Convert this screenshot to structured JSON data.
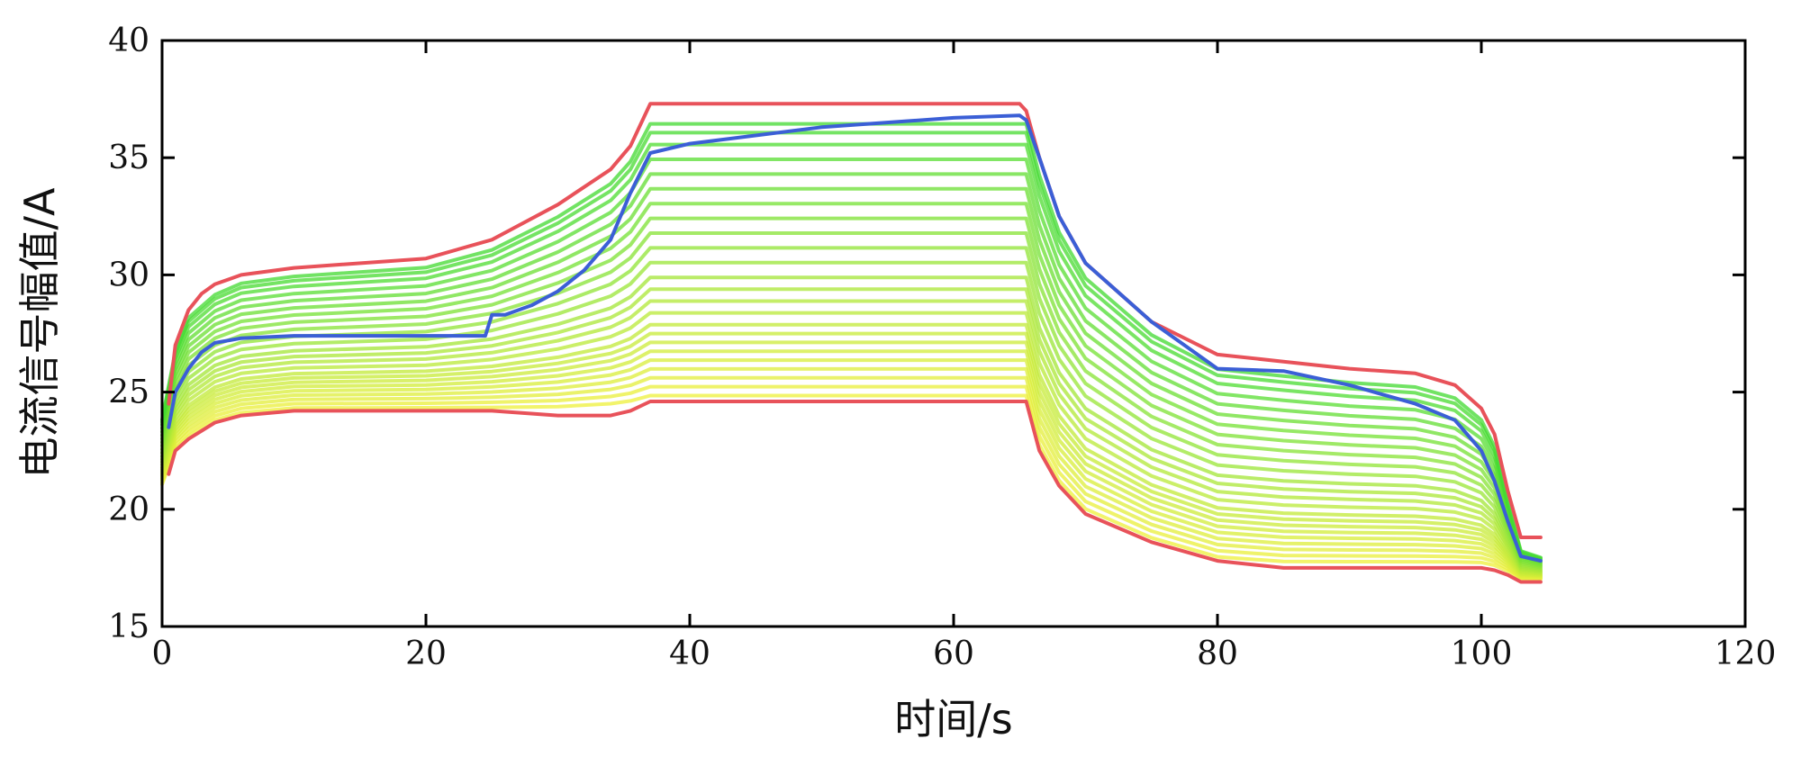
{
  "chart_data": {
    "type": "line",
    "title": "",
    "xlabel": "时间/s",
    "ylabel": "电流信号幅值/A",
    "xlim": [
      0,
      120
    ],
    "ylim": [
      15,
      40
    ],
    "xticks": [
      0,
      20,
      40,
      60,
      80,
      100,
      120
    ],
    "yticks": [
      15,
      20,
      25,
      30,
      35,
      40
    ],
    "xtick_labels": [
      "0",
      "20",
      "40",
      "60",
      "80",
      "100",
      "120"
    ],
    "ytick_labels": [
      "15",
      "20",
      "25",
      "30",
      "35",
      "40"
    ],
    "grid": false,
    "legend": false,
    "band": {
      "description": "family of curves between lower and upper bounds, colored yellow (low) to green (high)",
      "x": [
        0,
        1,
        2,
        4,
        6,
        10,
        20,
        25,
        30,
        34,
        35.5,
        37,
        40,
        50,
        60,
        65,
        65.5,
        66.5,
        68,
        70,
        75,
        80,
        85,
        90,
        95,
        98,
        100,
        101,
        102,
        103,
        104.5
      ],
      "low_shape": [
        21.0,
        22.5,
        23.0,
        23.7,
        24.0,
        24.2,
        24.2,
        24.2,
        24.2,
        24.3,
        24.4,
        24.6,
        24.6,
        24.6,
        24.6,
        24.6,
        24.6,
        22.5,
        21.0,
        19.8,
        18.6,
        17.8,
        17.6,
        17.6,
        17.6,
        17.6,
        17.6,
        17.5,
        17.3,
        17.0,
        17.0
      ],
      "high_shape": [
        24.0,
        27.0,
        28.5,
        29.5,
        30.0,
        30.3,
        30.7,
        31.5,
        33.0,
        34.5,
        35.5,
        37.2,
        37.2,
        37.2,
        37.2,
        37.2,
        37.2,
        35.0,
        32.5,
        30.5,
        28.0,
        26.5,
        26.2,
        25.9,
        25.7,
        25.2,
        24.2,
        23.0,
        20.5,
        18.3,
        18.0
      ],
      "levels": [
        0.02,
        0.05,
        0.08,
        0.11,
        0.14,
        0.17,
        0.2,
        0.23,
        0.26,
        0.3,
        0.34,
        0.38,
        0.42,
        0.47,
        0.52,
        0.57,
        0.62,
        0.67,
        0.72,
        0.77,
        0.82,
        0.87,
        0.91,
        0.94
      ],
      "color_low": "#f2f03a",
      "color_high": "#36d92f"
    },
    "series": [
      {
        "color": "#e8525a",
        "x": [
          0.5,
          1,
          2,
          3,
          4,
          6,
          10,
          20,
          25,
          30,
          34,
          35.5,
          37,
          40,
          50,
          60,
          65,
          65.5,
          66.5,
          68,
          70,
          75,
          80,
          85,
          90,
          95,
          98,
          100,
          101,
          102,
          103,
          104.5
        ],
        "values": [
          24.5,
          27.0,
          28.5,
          29.2,
          29.6,
          30.0,
          30.3,
          30.7,
          31.5,
          33.0,
          34.5,
          35.5,
          37.3,
          37.3,
          37.3,
          37.3,
          37.3,
          37.0,
          35.0,
          32.5,
          30.5,
          28.0,
          26.6,
          26.3,
          26.0,
          25.8,
          25.3,
          24.3,
          23.2,
          20.8,
          18.8,
          18.8
        ]
      },
      {
        "color": "#e8525a",
        "x": [
          0.5,
          1,
          2,
          4,
          6,
          10,
          20,
          25,
          30,
          34,
          35.5,
          37,
          40,
          50,
          60,
          65,
          65.5,
          66.5,
          68,
          70,
          75,
          80,
          85,
          90,
          95,
          98,
          100,
          101,
          102,
          103,
          104.5
        ],
        "values": [
          21.5,
          22.5,
          23.0,
          23.7,
          24.0,
          24.2,
          24.2,
          24.2,
          24.0,
          24.0,
          24.2,
          24.6,
          24.6,
          24.6,
          24.6,
          24.6,
          24.6,
          22.5,
          21.0,
          19.8,
          18.6,
          17.8,
          17.5,
          17.5,
          17.5,
          17.5,
          17.5,
          17.4,
          17.2,
          16.9,
          16.9
        ]
      },
      {
        "color": "#3b5fd6",
        "x": [
          0.5,
          1,
          2,
          3,
          4,
          6,
          10,
          20,
          24.5,
          25,
          26,
          28,
          30,
          32,
          34,
          35.5,
          37,
          40,
          50,
          60,
          65,
          65.5,
          66.5,
          68,
          70,
          75,
          80,
          85,
          90,
          95,
          98,
          100,
          101,
          102,
          103,
          104.5
        ],
        "values": [
          23.5,
          25.0,
          26.0,
          26.7,
          27.1,
          27.3,
          27.4,
          27.4,
          27.4,
          28.3,
          28.3,
          28.7,
          29.3,
          30.2,
          31.5,
          33.5,
          35.2,
          35.6,
          36.3,
          36.7,
          36.8,
          36.6,
          35.0,
          32.5,
          30.5,
          28.0,
          26.0,
          25.9,
          25.3,
          24.5,
          23.8,
          22.5,
          21.2,
          19.5,
          18.0,
          17.8
        ]
      }
    ]
  }
}
